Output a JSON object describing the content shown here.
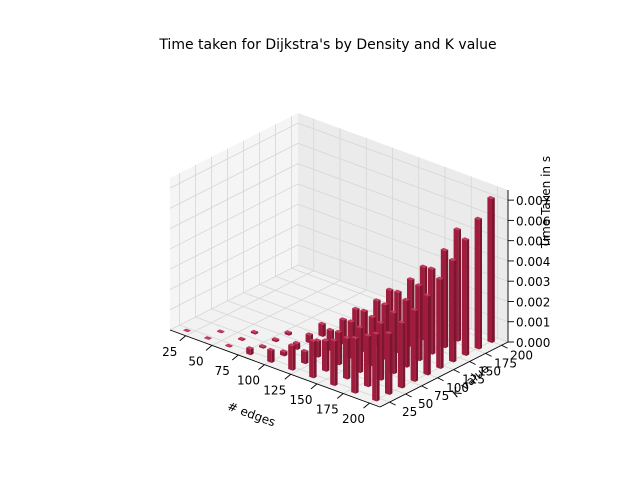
{
  "chart_data": {
    "type": "bar3d",
    "title": "Time taken for Dijkstra's by Density and K value",
    "xlabel": "# edges",
    "ylabel": "K value",
    "zlabel": "Time Taken in s",
    "x_ticks": [
      "25",
      "50",
      "75",
      "100",
      "125",
      "150",
      "175",
      "200"
    ],
    "y_ticks": [
      "25",
      "50",
      "75",
      "100",
      "125",
      "150",
      "175",
      "200"
    ],
    "z_ticks": [
      "0.000",
      "0.001",
      "0.002",
      "0.003",
      "0.004",
      "0.005",
      "0.006",
      "0.007"
    ],
    "xlim": [
      10,
      210
    ],
    "ylim": [
      10,
      210
    ],
    "zlim": [
      0,
      0.0075
    ],
    "grid": true,
    "bar_color": "#a01c3c",
    "note_on_data": "One bar per (edges, K) pair with K <= edges; heights read approximately from the plot.",
    "bars": [
      {
        "x": 20,
        "y": 20,
        "z": 2e-05
      },
      {
        "x": 40,
        "y": 20,
        "z": 3e-05
      },
      {
        "x": 40,
        "y": 40,
        "z": 4e-05
      },
      {
        "x": 60,
        "y": 20,
        "z": 4e-05
      },
      {
        "x": 60,
        "y": 40,
        "z": 6e-05
      },
      {
        "x": 60,
        "y": 60,
        "z": 8e-05
      },
      {
        "x": 80,
        "y": 20,
        "z": 0.0003
      },
      {
        "x": 80,
        "y": 40,
        "z": 8e-05
      },
      {
        "x": 80,
        "y": 60,
        "z": 0.0001
      },
      {
        "x": 80,
        "y": 80,
        "z": 0.00012
      },
      {
        "x": 100,
        "y": 20,
        "z": 0.0006
      },
      {
        "x": 100,
        "y": 40,
        "z": 0.0002
      },
      {
        "x": 100,
        "y": 60,
        "z": 0.0003
      },
      {
        "x": 100,
        "y": 80,
        "z": 0.0004
      },
      {
        "x": 100,
        "y": 100,
        "z": 0.0006
      },
      {
        "x": 120,
        "y": 20,
        "z": 0.0012
      },
      {
        "x": 120,
        "y": 40,
        "z": 0.0006
      },
      {
        "x": 120,
        "y": 60,
        "z": 0.0008
      },
      {
        "x": 120,
        "y": 80,
        "z": 0.001
      },
      {
        "x": 120,
        "y": 100,
        "z": 0.0012
      },
      {
        "x": 120,
        "y": 120,
        "z": 0.0014
      },
      {
        "x": 140,
        "y": 20,
        "z": 0.0018
      },
      {
        "x": 140,
        "y": 40,
        "z": 0.0015
      },
      {
        "x": 140,
        "y": 60,
        "z": 0.0016
      },
      {
        "x": 140,
        "y": 80,
        "z": 0.0018
      },
      {
        "x": 140,
        "y": 100,
        "z": 0.002
      },
      {
        "x": 140,
        "y": 120,
        "z": 0.0022
      },
      {
        "x": 140,
        "y": 140,
        "z": 0.0024
      },
      {
        "x": 160,
        "y": 20,
        "z": 0.0022
      },
      {
        "x": 160,
        "y": 40,
        "z": 0.002
      },
      {
        "x": 160,
        "y": 60,
        "z": 0.0022
      },
      {
        "x": 160,
        "y": 80,
        "z": 0.0024
      },
      {
        "x": 160,
        "y": 100,
        "z": 0.0027
      },
      {
        "x": 160,
        "y": 120,
        "z": 0.003
      },
      {
        "x": 160,
        "y": 140,
        "z": 0.0033
      },
      {
        "x": 160,
        "y": 160,
        "z": 0.0036
      },
      {
        "x": 180,
        "y": 20,
        "z": 0.0027
      },
      {
        "x": 180,
        "y": 40,
        "z": 0.0025
      },
      {
        "x": 180,
        "y": 60,
        "z": 0.0028
      },
      {
        "x": 180,
        "y": 80,
        "z": 0.003
      },
      {
        "x": 180,
        "y": 100,
        "z": 0.0033
      },
      {
        "x": 180,
        "y": 120,
        "z": 0.0037
      },
      {
        "x": 180,
        "y": 140,
        "z": 0.0042
      },
      {
        "x": 180,
        "y": 160,
        "z": 0.0048
      },
      {
        "x": 180,
        "y": 180,
        "z": 0.0055
      },
      {
        "x": 200,
        "y": 20,
        "z": 0.0033
      },
      {
        "x": 200,
        "y": 40,
        "z": 0.003
      },
      {
        "x": 200,
        "y": 60,
        "z": 0.0032
      },
      {
        "x": 200,
        "y": 80,
        "z": 0.0035
      },
      {
        "x": 200,
        "y": 100,
        "z": 0.0039
      },
      {
        "x": 200,
        "y": 120,
        "z": 0.0044
      },
      {
        "x": 200,
        "y": 140,
        "z": 0.005
      },
      {
        "x": 200,
        "y": 160,
        "z": 0.0057
      },
      {
        "x": 200,
        "y": 180,
        "z": 0.0064
      },
      {
        "x": 200,
        "y": 200,
        "z": 0.0071
      }
    ]
  }
}
